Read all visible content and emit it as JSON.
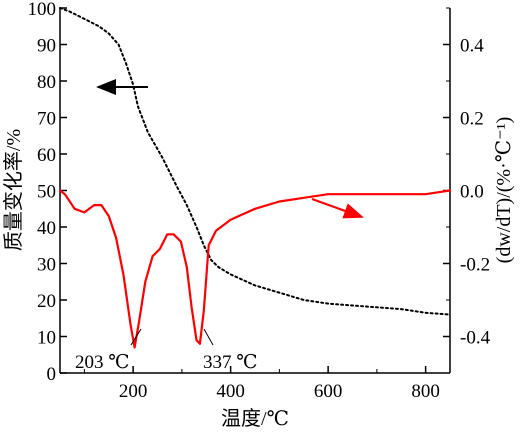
{
  "chart_data": {
    "type": "line",
    "title": "",
    "xlabel": "温度/℃",
    "ylabel_left": "质量变化率/%",
    "ylabel_right": "(dw/dT)/(%·℃⁻¹)",
    "xlim": [
      50,
      850
    ],
    "ylim_left": [
      0,
      100
    ],
    "ylim_right": [
      -0.5,
      0.5
    ],
    "x_ticks": [
      "200",
      "400",
      "600",
      "800"
    ],
    "x_tick_values": [
      200,
      400,
      600,
      800
    ],
    "y_left_ticks": [
      "0",
      "10",
      "20",
      "30",
      "40",
      "50",
      "60",
      "70",
      "80",
      "90",
      "100"
    ],
    "y_left_tick_values": [
      0,
      10,
      20,
      30,
      40,
      50,
      60,
      70,
      80,
      90,
      100
    ],
    "y_right_ticks": [
      "0.4",
      "0.2",
      "0.0",
      "-0.2",
      "-0.4"
    ],
    "y_right_tick_values": [
      0.4,
      0.2,
      0.0,
      -0.2,
      -0.4
    ],
    "grid": false,
    "legend": "none",
    "series": [
      {
        "axis": "left",
        "style": "dotted",
        "color": "#000000",
        "x": [
          50,
          70,
          100,
          130,
          150,
          170,
          185,
          200,
          210,
          230,
          260,
          290,
          310,
          330,
          345,
          360,
          375,
          400,
          450,
          500,
          550,
          600,
          650,
          700,
          750,
          800,
          850
        ],
        "y": [
          100,
          99,
          97,
          95,
          93,
          90,
          85,
          79,
          73,
          66,
          59,
          51,
          46,
          40,
          35,
          31,
          29,
          27,
          24,
          22,
          20,
          19,
          18.5,
          18,
          17.5,
          16.5,
          16
        ]
      },
      {
        "axis": "right",
        "style": "solid",
        "color": "#ff0000",
        "x": [
          50,
          60,
          80,
          100,
          120,
          135,
          150,
          165,
          180,
          195,
          203,
          212,
          225,
          240,
          255,
          270,
          283,
          298,
          310,
          320,
          330,
          337,
          345,
          355,
          370,
          400,
          450,
          500,
          550,
          600,
          650,
          700,
          750,
          800,
          850
        ],
        "y": [
          0.0,
          -0.01,
          -0.05,
          -0.06,
          -0.04,
          -0.04,
          -0.07,
          -0.13,
          -0.23,
          -0.37,
          -0.43,
          -0.36,
          -0.25,
          -0.18,
          -0.16,
          -0.12,
          -0.12,
          -0.14,
          -0.21,
          -0.32,
          -0.41,
          -0.42,
          -0.33,
          -0.15,
          -0.11,
          -0.08,
          -0.05,
          -0.03,
          -0.02,
          -0.01,
          -0.01,
          -0.01,
          -0.01,
          -0.01,
          0.0
        ]
      }
    ],
    "annotations": [
      {
        "text": "203 ℃",
        "x": 203,
        "y_right": -0.43
      },
      {
        "text": "337 ℃",
        "x": 337,
        "y_right": -0.42
      }
    ]
  }
}
